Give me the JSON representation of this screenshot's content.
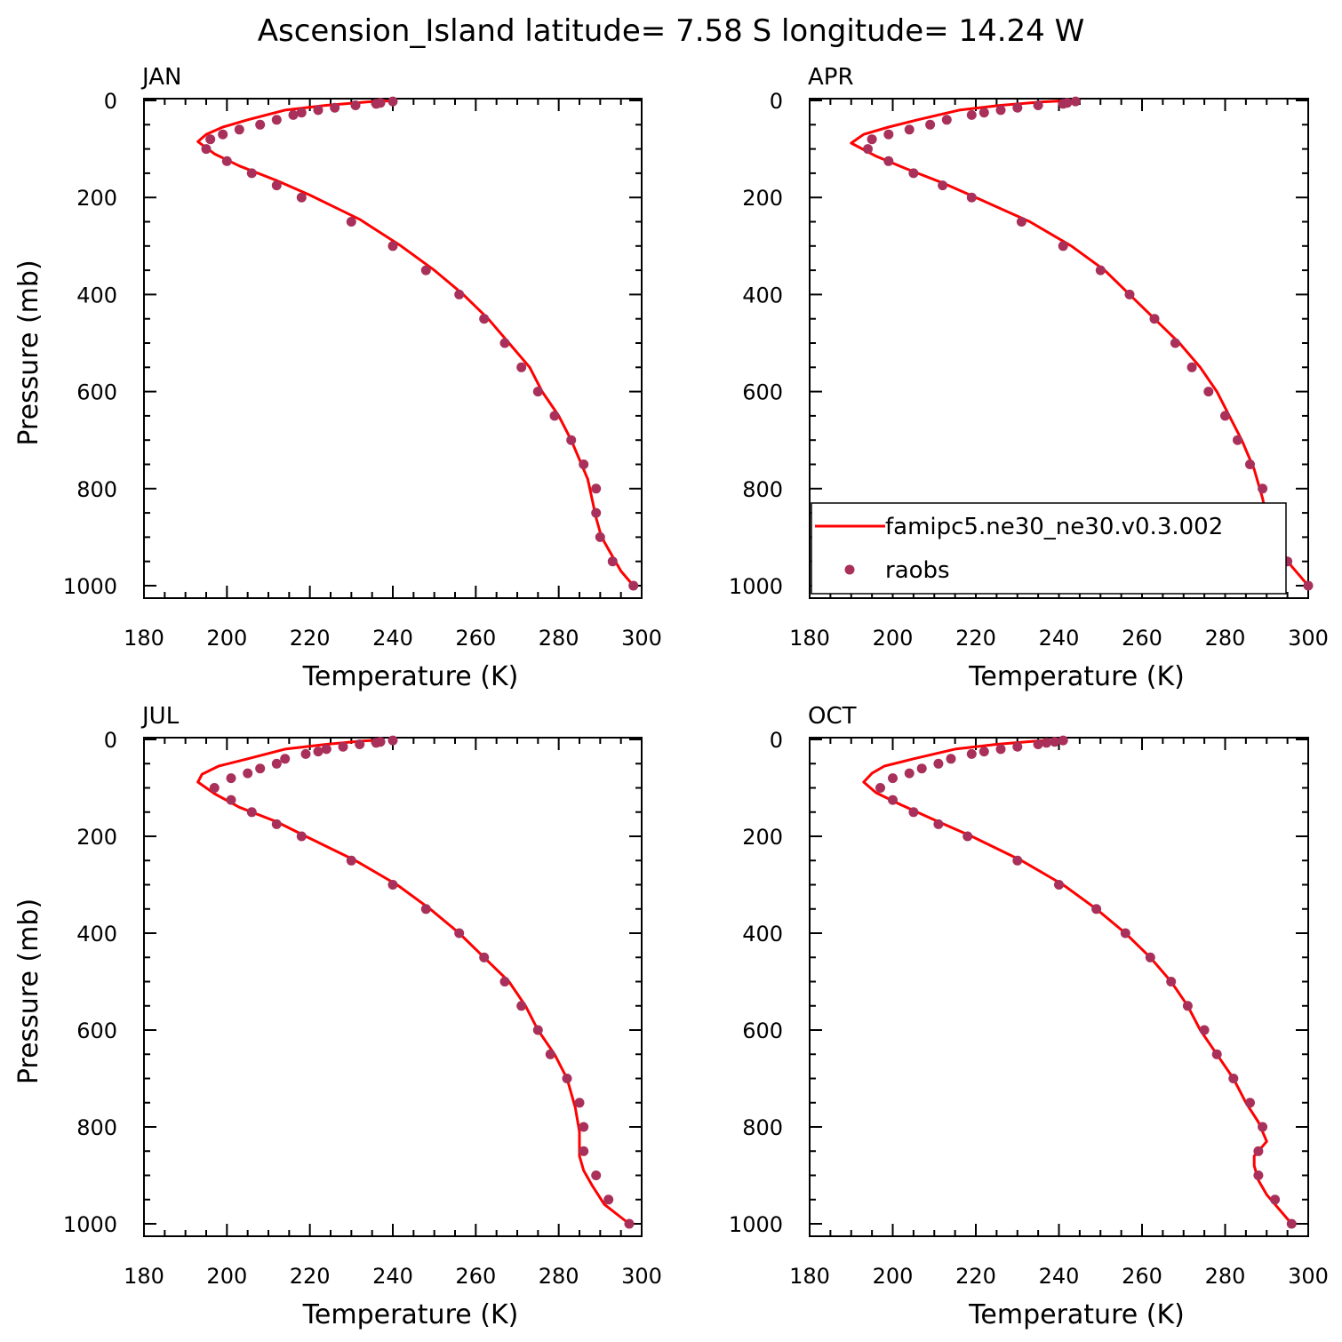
{
  "figure": {
    "title": "Ascension_Island  latitude= 7.58 S longitude= 14.24 W"
  },
  "colors": {
    "model_line": "#ff0000",
    "obs_marker": "#a8305a",
    "frame": "#000000"
  },
  "legend": {
    "entries": [
      {
        "name": "famipc5.ne30_ne30.v0.3.002",
        "style": "line"
      },
      {
        "name": "raobs",
        "style": "marker"
      }
    ],
    "panel": "APR",
    "placement": "lower-center"
  },
  "chart_data": [
    {
      "type": "line",
      "panel": "JAN",
      "xlabel": "Temperature (K)",
      "ylabel": "Pressure (mb)",
      "xlim": [
        180,
        300
      ],
      "ylim": [
        1000,
        0
      ],
      "xticks": [
        "180",
        "200",
        "220",
        "240",
        "260",
        "280",
        "300"
      ],
      "yticks": [
        "0",
        "200",
        "400",
        "600",
        "800",
        "1000"
      ],
      "series": [
        {
          "name": "famipc5.ne30_ne30.v0.3.002",
          "kind": "line",
          "x": [
            239,
            234,
            224,
            214,
            205,
            199,
            195,
            193,
            197,
            203,
            212,
            220,
            232,
            242,
            250,
            257,
            263,
            268,
            273,
            276,
            280,
            283,
            287,
            288,
            289,
            290,
            291,
            293,
            295,
            298
          ],
          "y": [
            1,
            3,
            10,
            20,
            40,
            55,
            70,
            85,
            110,
            135,
            165,
            195,
            245,
            300,
            350,
            400,
            450,
            500,
            550,
            600,
            650,
            700,
            780,
            820,
            860,
            890,
            910,
            940,
            970,
            1000
          ]
        },
        {
          "name": "raobs",
          "kind": "scatter",
          "x": [
            240,
            237,
            236,
            231,
            226,
            222,
            218,
            216,
            212,
            208,
            203,
            199,
            196,
            195,
            200,
            206,
            212,
            218,
            230,
            240,
            248,
            256,
            262,
            267,
            271,
            275,
            279,
            283,
            286,
            289,
            289,
            290,
            293,
            298
          ],
          "y": [
            2,
            5,
            7,
            10,
            15,
            20,
            25,
            30,
            40,
            50,
            60,
            70,
            80,
            100,
            125,
            150,
            175,
            200,
            250,
            300,
            350,
            400,
            450,
            500,
            550,
            600,
            650,
            700,
            750,
            800,
            850,
            900,
            950,
            1000
          ]
        }
      ]
    },
    {
      "type": "line",
      "panel": "APR",
      "xlabel": "Temperature (K)",
      "ylabel": "",
      "xlim": [
        180,
        300
      ],
      "ylim": [
        1000,
        0
      ],
      "xticks": [
        "180",
        "200",
        "220",
        "240",
        "260",
        "280",
        "300"
      ],
      "yticks": [
        "0",
        "200",
        "400",
        "600",
        "800",
        "1000"
      ],
      "series": [
        {
          "name": "famipc5.ne30_ne30.v0.3.002",
          "kind": "line",
          "x": [
            241,
            236,
            226,
            216,
            206,
            199,
            193,
            190,
            196,
            203,
            212,
            220,
            233,
            243,
            251,
            257,
            263,
            269,
            274,
            278,
            281,
            284,
            287,
            289,
            290,
            291,
            293,
            296,
            300
          ],
          "y": [
            1,
            3,
            10,
            20,
            40,
            55,
            70,
            88,
            115,
            140,
            170,
            200,
            250,
            300,
            350,
            400,
            450,
            500,
            550,
            600,
            650,
            700,
            760,
            820,
            860,
            890,
            920,
            960,
            1000
          ]
        },
        {
          "name": "raobs",
          "kind": "scatter",
          "x": [
            244,
            242,
            241,
            235,
            230,
            226,
            222,
            219,
            213,
            209,
            204,
            199,
            195,
            194,
            199,
            205,
            212,
            219,
            231,
            241,
            250,
            257,
            263,
            268,
            272,
            276,
            280,
            283,
            286,
            289,
            290,
            292,
            295,
            300
          ],
          "y": [
            2,
            5,
            7,
            10,
            15,
            20,
            25,
            30,
            40,
            50,
            60,
            70,
            80,
            100,
            125,
            150,
            175,
            200,
            250,
            300,
            350,
            400,
            450,
            500,
            550,
            600,
            650,
            700,
            750,
            800,
            850,
            900,
            950,
            1000
          ]
        }
      ]
    },
    {
      "type": "line",
      "panel": "JUL",
      "xlabel": "Temperature (K)",
      "ylabel": "Pressure (mb)",
      "xlim": [
        180,
        300
      ],
      "ylim": [
        1000,
        0
      ],
      "xticks": [
        "180",
        "200",
        "220",
        "240",
        "260",
        "280",
        "300"
      ],
      "yticks": [
        "0",
        "200",
        "400",
        "600",
        "800",
        "1000"
      ],
      "series": [
        {
          "name": "famipc5.ne30_ne30.v0.3.002",
          "kind": "line",
          "x": [
            238,
            233,
            224,
            214,
            205,
            198,
            194,
            193,
            197,
            203,
            212,
            219,
            231,
            241,
            249,
            256,
            262,
            268,
            272,
            275,
            279,
            282,
            284,
            285,
            285,
            286,
            288,
            291,
            297
          ],
          "y": [
            1,
            3,
            10,
            20,
            40,
            55,
            72,
            88,
            112,
            140,
            170,
            200,
            250,
            300,
            350,
            400,
            450,
            500,
            550,
            600,
            650,
            700,
            760,
            810,
            860,
            890,
            920,
            960,
            1000
          ]
        },
        {
          "name": "raobs",
          "kind": "scatter",
          "x": [
            240,
            237,
            236,
            232,
            228,
            224,
            222,
            219,
            214,
            212,
            208,
            205,
            201,
            197,
            201,
            206,
            212,
            218,
            230,
            240,
            248,
            256,
            262,
            267,
            271,
            275,
            278,
            282,
            285,
            286,
            286,
            289,
            292,
            297
          ],
          "y": [
            2,
            5,
            7,
            10,
            15,
            20,
            25,
            30,
            40,
            50,
            60,
            70,
            80,
            100,
            125,
            150,
            175,
            200,
            250,
            300,
            350,
            400,
            450,
            500,
            550,
            600,
            650,
            700,
            750,
            800,
            850,
            900,
            950,
            1000
          ]
        }
      ]
    },
    {
      "type": "line",
      "panel": "OCT",
      "xlabel": "Temperature (K)",
      "ylabel": "",
      "xlim": [
        180,
        300
      ],
      "ylim": [
        1000,
        0
      ],
      "xticks": [
        "180",
        "200",
        "220",
        "240",
        "260",
        "280",
        "300"
      ],
      "yticks": [
        "0",
        "200",
        "400",
        "600",
        "800",
        "1000"
      ],
      "series": [
        {
          "name": "famipc5.ne30_ne30.v0.3.002",
          "kind": "line",
          "x": [
            240,
            235,
            225,
            215,
            205,
            198,
            195,
            193,
            196,
            202,
            211,
            219,
            231,
            241,
            249,
            256,
            262,
            267,
            271,
            274,
            278,
            282,
            285,
            288,
            290,
            287,
            287,
            288,
            290,
            296
          ],
          "y": [
            1,
            3,
            10,
            20,
            40,
            55,
            70,
            88,
            110,
            135,
            170,
            200,
            250,
            300,
            350,
            400,
            450,
            500,
            550,
            600,
            650,
            700,
            750,
            790,
            830,
            860,
            880,
            910,
            940,
            1000
          ]
        },
        {
          "name": "raobs",
          "kind": "scatter",
          "x": [
            241,
            239,
            237,
            235,
            230,
            226,
            222,
            219,
            214,
            211,
            207,
            204,
            200,
            197,
            200,
            205,
            211,
            218,
            230,
            240,
            249,
            256,
            262,
            267,
            271,
            275,
            278,
            282,
            286,
            289,
            288,
            288,
            292,
            296
          ],
          "y": [
            2,
            5,
            7,
            10,
            15,
            20,
            25,
            30,
            40,
            50,
            60,
            70,
            80,
            100,
            125,
            150,
            175,
            200,
            250,
            300,
            350,
            400,
            450,
            500,
            550,
            600,
            650,
            700,
            750,
            800,
            850,
            900,
            950,
            1000
          ]
        }
      ]
    }
  ]
}
